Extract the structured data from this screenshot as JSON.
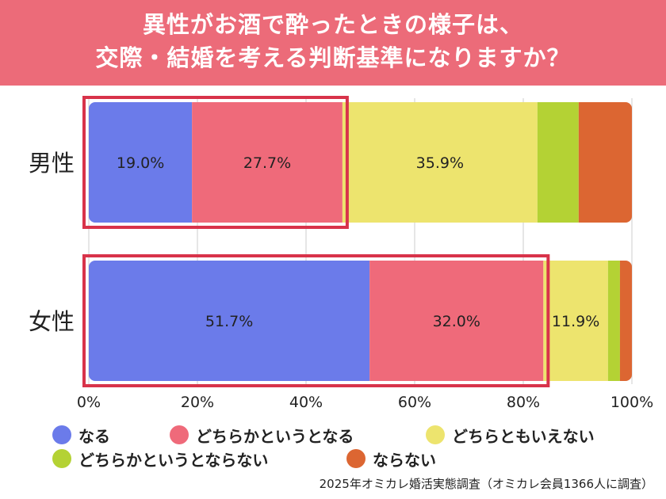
{
  "header": {
    "title_line1": "異性がお酒で酔ったときの様子は、",
    "title_line2": "交際・結婚を考える判断基準になりますか？"
  },
  "chart_data": {
    "type": "bar",
    "orientation": "horizontal",
    "stacked": true,
    "categories": [
      "男性",
      "女性"
    ],
    "series": [
      {
        "name": "なる",
        "color": "#6b7bea",
        "values": [
          19.0,
          51.7
        ],
        "labels": [
          "19.0%",
          "51.7%"
        ]
      },
      {
        "name": "どちらかというとなる",
        "color": "#ef6a7a",
        "values": [
          27.7,
          32.0
        ],
        "labels": [
          "27.7%",
          "32.0%"
        ]
      },
      {
        "name": "どちらともいえない",
        "color": "#ede46e",
        "values": [
          35.9,
          11.9
        ],
        "labels": [
          "35.9%",
          "11.9%"
        ]
      },
      {
        "name": "どちらかというとならない",
        "color": "#b4d234",
        "values": [
          7.6,
          2.2
        ],
        "labels": [
          "",
          ""
        ]
      },
      {
        "name": "ならない",
        "color": "#dc6632",
        "values": [
          9.8,
          2.2
        ],
        "labels": [
          "",
          ""
        ]
      }
    ],
    "xlim": [
      0,
      100
    ],
    "xticks": [
      0,
      20,
      40,
      60,
      80,
      100
    ],
    "xtick_labels": [
      "0%",
      "20%",
      "40%",
      "60%",
      "80%",
      "100%"
    ],
    "highlight_color": "#d8334a",
    "highlight_series_count": 2,
    "grid": true,
    "legend_position": "bottom"
  },
  "footer": {
    "source": "2025年オミカレ婚活実態調査（オミカレ会員1366人に調査）"
  }
}
